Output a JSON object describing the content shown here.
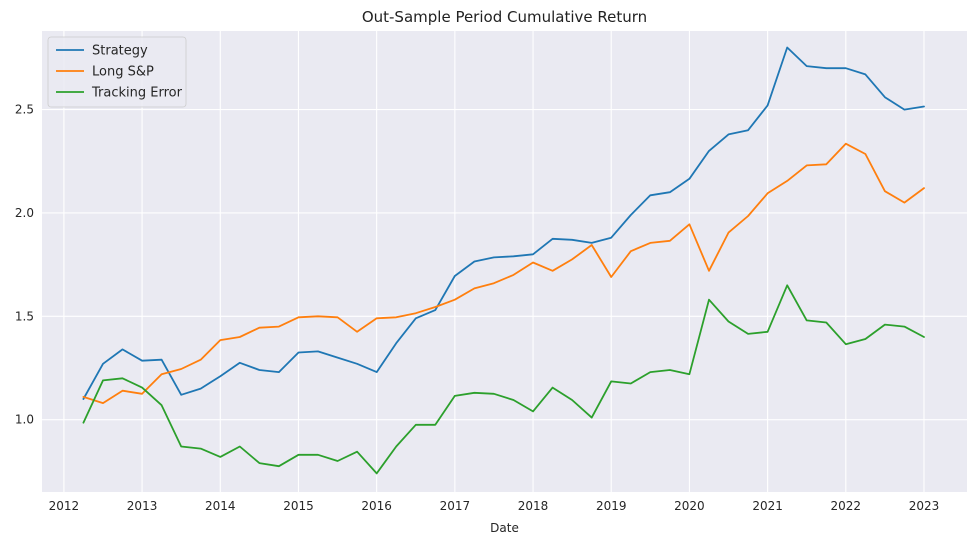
{
  "chart_data": {
    "type": "line",
    "title": "Out-Sample Period Cumulative Return",
    "xlabel": "Date",
    "ylabel": "",
    "xlim": [
      2011.72,
      2023.55
    ],
    "ylim": [
      0.65,
      2.88
    ],
    "xticks": [
      2012,
      2013,
      2014,
      2015,
      2016,
      2017,
      2018,
      2019,
      2020,
      2021,
      2022,
      2023
    ],
    "xtick_labels": [
      "2012",
      "2013",
      "2014",
      "2015",
      "2016",
      "2017",
      "2018",
      "2019",
      "2020",
      "2021",
      "2022",
      "2023"
    ],
    "yticks": [
      1.0,
      1.5,
      2.0,
      2.5
    ],
    "ytick_labels": [
      "1.0",
      "1.5",
      "2.0",
      "2.5"
    ],
    "grid": true,
    "legend_position": "top-left",
    "x": [
      2012.25,
      2012.5,
      2012.75,
      2013.0,
      2013.25,
      2013.5,
      2013.75,
      2014.0,
      2014.25,
      2014.5,
      2014.75,
      2015.0,
      2015.25,
      2015.5,
      2015.75,
      2016.0,
      2016.25,
      2016.5,
      2016.75,
      2017.0,
      2017.25,
      2017.5,
      2017.75,
      2018.0,
      2018.25,
      2018.5,
      2018.75,
      2019.0,
      2019.25,
      2019.5,
      2019.75,
      2020.0,
      2020.25,
      2020.5,
      2020.75,
      2021.0,
      2021.25,
      2021.5,
      2021.75,
      2022.0,
      2022.25,
      2022.5,
      2022.75,
      2023.0
    ],
    "series": [
      {
        "name": "Strategy",
        "color": "#1f77b4",
        "values": [
          1.1,
          1.27,
          1.34,
          1.285,
          1.29,
          1.12,
          1.15,
          1.21,
          1.275,
          1.24,
          1.23,
          1.325,
          1.33,
          1.3,
          1.27,
          1.23,
          1.37,
          1.49,
          1.53,
          1.695,
          1.765,
          1.785,
          1.79,
          1.8,
          1.875,
          1.87,
          1.855,
          1.88,
          1.99,
          2.085,
          2.1,
          2.165,
          2.3,
          2.38,
          2.4,
          2.52,
          2.8,
          2.71,
          2.7,
          2.7,
          2.67,
          2.56,
          2.5,
          2.515
        ]
      },
      {
        "name": "Long S&P",
        "color": "#ff7f0e",
        "values": [
          1.11,
          1.08,
          1.14,
          1.125,
          1.22,
          1.245,
          1.29,
          1.385,
          1.4,
          1.445,
          1.45,
          1.495,
          1.5,
          1.495,
          1.425,
          1.49,
          1.495,
          1.515,
          1.545,
          1.58,
          1.635,
          1.66,
          1.7,
          1.76,
          1.72,
          1.775,
          1.845,
          1.69,
          1.815,
          1.855,
          1.865,
          1.945,
          1.72,
          1.905,
          1.985,
          2.095,
          2.155,
          2.23,
          2.235,
          2.335,
          2.285,
          2.105,
          2.05,
          2.12
        ]
      },
      {
        "name": "Tracking Error",
        "color": "#2ca02c",
        "values": [
          0.985,
          1.19,
          1.2,
          1.155,
          1.07,
          0.87,
          0.86,
          0.82,
          0.87,
          0.79,
          0.775,
          0.83,
          0.83,
          0.8,
          0.845,
          0.74,
          0.87,
          0.975,
          0.975,
          1.115,
          1.13,
          1.125,
          1.095,
          1.04,
          1.155,
          1.095,
          1.01,
          1.185,
          1.175,
          1.23,
          1.24,
          1.22,
          1.58,
          1.475,
          1.415,
          1.425,
          1.65,
          1.48,
          1.47,
          1.365,
          1.39,
          1.46,
          1.45,
          1.4
        ]
      }
    ]
  }
}
